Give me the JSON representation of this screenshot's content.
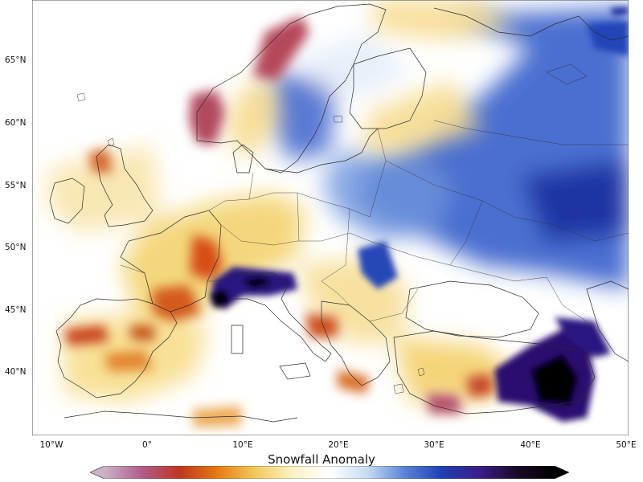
{
  "map": {
    "type": "choropleth-raster",
    "title": "",
    "region": "Europe",
    "extent": {
      "lon": [
        -12,
        50
      ],
      "lat": [
        35,
        70
      ]
    },
    "y_ticks": [
      "40°N",
      "45°N",
      "50°N",
      "55°N",
      "60°N",
      "65°N"
    ],
    "x_ticks": [
      "10°W",
      "0°",
      "10°E",
      "20°E",
      "30°E",
      "40°E",
      "50°E"
    ],
    "colorbar": {
      "label": "Snowfall Anomaly",
      "orientation": "horizontal",
      "extend": "both",
      "colors": [
        "#c9b2c6",
        "#b05c8a",
        "#c0361f",
        "#e57a10",
        "#f4c85a",
        "#fbf1c4",
        "#ffffff",
        "#c8dbf2",
        "#5a84d6",
        "#1f3fb3",
        "#3b1d8a",
        "#1a0a26",
        "#000000"
      ]
    },
    "highlights": [
      {
        "name": "Alps",
        "sign": "positive-extreme"
      },
      {
        "name": "Norway coast",
        "sign": "negative-extreme"
      },
      {
        "name": "Caucasus / eastern Anatolia",
        "sign": "positive-extreme"
      },
      {
        "name": "Russia",
        "sign": "positive"
      },
      {
        "name": "Iberia / France",
        "sign": "negative"
      }
    ]
  }
}
